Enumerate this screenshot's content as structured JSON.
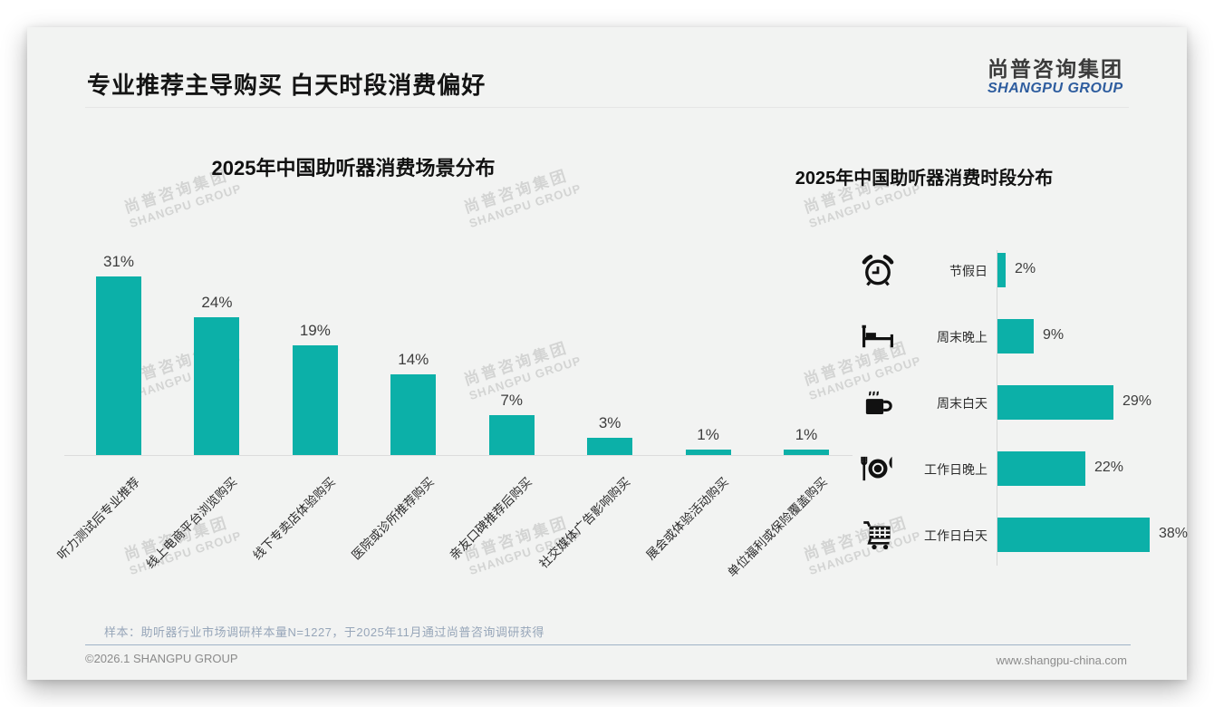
{
  "page": {
    "title": "专业推荐主导购买 白天时段消费偏好",
    "logo": {
      "cn": "尚普咨询集团",
      "en": "SHANGPU GROUP"
    },
    "watermark": {
      "cn": "尚普咨询集团",
      "en": "SHANGPU GROUP"
    },
    "footer": {
      "sample_note": "样本：助听器行业市场调研样本量N=1227，于2025年11月通过尚普咨询调研获得",
      "copyright": "©2026.1 SHANGPU GROUP",
      "website": "www.shangpu-china.com"
    }
  },
  "colors": {
    "bar_teal": "#0CB0A8",
    "logo_blue": "#2d5c9e",
    "note_blue_gray": "#97a6b9",
    "card_background": "#F2F3F2"
  },
  "chart_data": [
    {
      "type": "bar",
      "orientation": "vertical",
      "title": "2025年中国助听器消费场景分布",
      "categories": [
        "听力测试后专业推荐",
        "线上电商平台浏览购买",
        "线下专卖店体验购买",
        "医院或诊所推荐购买",
        "亲友口碑推荐后购买",
        "社交媒体广告影响购买",
        "展会或体验活动购买",
        "单位福利或保险覆盖购买"
      ],
      "values": [
        31,
        24,
        19,
        14,
        7,
        3,
        1,
        1
      ],
      "unit": "%",
      "data_labels": true,
      "grid": false,
      "ylim": [
        0,
        35
      ],
      "legend": "none"
    },
    {
      "type": "bar",
      "orientation": "horizontal",
      "title": "2025年中国助听器消费时段分布",
      "categories": [
        "节假日",
        "周末晚上",
        "周末白天",
        "工作日晚上",
        "工作日白天"
      ],
      "values": [
        2,
        9,
        29,
        22,
        38
      ],
      "icons": [
        "alarm-clock",
        "bed",
        "coffee",
        "dining",
        "shopping-cart"
      ],
      "unit": "%",
      "data_labels": true,
      "grid": false,
      "xlim": [
        0,
        40
      ],
      "legend": "none"
    }
  ]
}
